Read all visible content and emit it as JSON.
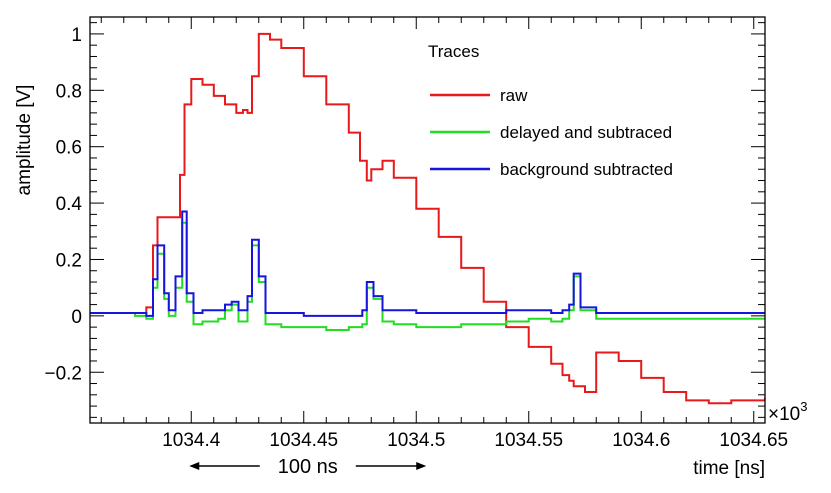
{
  "chart_data": {
    "type": "line",
    "title": "",
    "xlabel": "time [ns]",
    "ylabel": "amplitude [V]",
    "x_exponent_label": "×10",
    "x_exponent_power": "3",
    "xlim": [
      1034.355,
      1034.655
    ],
    "ylim": [
      -0.38,
      1.06
    ],
    "x_ticks": [
      1034.4,
      1034.45,
      1034.5,
      1034.55,
      1034.6,
      1034.65
    ],
    "x_tick_labels": [
      "1034.4",
      "1034.45",
      "1034.5",
      "1034.55",
      "1034.6",
      "1034.65"
    ],
    "y_ticks": [
      -0.2,
      0,
      0.2,
      0.4,
      0.6,
      0.8,
      1
    ],
    "y_tick_labels": [
      "−0.2",
      "0",
      "0.2",
      "0.4",
      "0.6",
      "0.8",
      "1"
    ],
    "grid": false,
    "legend_position": "top-right",
    "legend_title": "Traces",
    "annotation": {
      "text": "100 ns",
      "x_from": 1034.4,
      "x_to": 1034.5
    },
    "series": [
      {
        "name": "raw",
        "color": "#e8191b",
        "x": [
          1034.355,
          1034.36,
          1034.37,
          1034.38,
          1034.383,
          1034.385,
          1034.39,
          1034.393,
          1034.395,
          1034.397,
          1034.4,
          1034.405,
          1034.41,
          1034.415,
          1034.42,
          1034.423,
          1034.425,
          1034.427,
          1034.43,
          1034.435,
          1034.44,
          1034.45,
          1034.46,
          1034.47,
          1034.475,
          1034.478,
          1034.48,
          1034.485,
          1034.49,
          1034.5,
          1034.51,
          1034.52,
          1034.53,
          1034.54,
          1034.55,
          1034.56,
          1034.565,
          1034.568,
          1034.57,
          1034.575,
          1034.58,
          1034.59,
          1034.6,
          1034.61,
          1034.62,
          1034.63,
          1034.64,
          1034.655
        ],
        "y": [
          0.01,
          0.01,
          0.01,
          0.03,
          0.25,
          0.35,
          0.35,
          0.35,
          0.5,
          0.75,
          0.84,
          0.82,
          0.78,
          0.75,
          0.72,
          0.73,
          0.72,
          0.85,
          1.0,
          0.98,
          0.95,
          0.85,
          0.75,
          0.65,
          0.55,
          0.48,
          0.52,
          0.55,
          0.49,
          0.38,
          0.28,
          0.17,
          0.05,
          -0.04,
          -0.11,
          -0.17,
          -0.21,
          -0.23,
          -0.25,
          -0.27,
          -0.13,
          -0.16,
          -0.22,
          -0.27,
          -0.3,
          -0.31,
          -0.3,
          -0.29
        ]
      },
      {
        "name": "delayed and subtraced",
        "color": "#22dd22",
        "x": [
          1034.355,
          1034.375,
          1034.38,
          1034.383,
          1034.385,
          1034.388,
          1034.39,
          1034.393,
          1034.396,
          1034.398,
          1034.401,
          1034.405,
          1034.412,
          1034.415,
          1034.418,
          1034.421,
          1034.425,
          1034.427,
          1034.43,
          1034.433,
          1034.44,
          1034.45,
          1034.46,
          1034.47,
          1034.476,
          1034.478,
          1034.481,
          1034.485,
          1034.49,
          1034.5,
          1034.51,
          1034.52,
          1034.53,
          1034.54,
          1034.55,
          1034.56,
          1034.565,
          1034.568,
          1034.57,
          1034.573,
          1034.58,
          1034.6,
          1034.62,
          1034.64,
          1034.655
        ],
        "y": [
          0.01,
          0.0,
          -0.01,
          0.1,
          0.22,
          0.06,
          0.0,
          0.1,
          0.33,
          0.05,
          -0.03,
          -0.02,
          -0.01,
          0.02,
          0.04,
          -0.02,
          0.05,
          0.25,
          0.12,
          -0.03,
          -0.04,
          -0.04,
          -0.05,
          -0.04,
          -0.03,
          0.1,
          0.06,
          -0.02,
          -0.03,
          -0.04,
          -0.04,
          -0.03,
          -0.03,
          -0.02,
          -0.01,
          -0.02,
          -0.01,
          0.02,
          0.14,
          0.02,
          -0.01,
          -0.01,
          -0.01,
          -0.01,
          -0.01
        ]
      },
      {
        "name": "background subtracted",
        "color": "#1515dd",
        "x": [
          1034.355,
          1034.375,
          1034.38,
          1034.383,
          1034.385,
          1034.388,
          1034.39,
          1034.393,
          1034.396,
          1034.398,
          1034.401,
          1034.405,
          1034.412,
          1034.415,
          1034.418,
          1034.421,
          1034.425,
          1034.427,
          1034.43,
          1034.433,
          1034.44,
          1034.45,
          1034.46,
          1034.47,
          1034.476,
          1034.478,
          1034.481,
          1034.485,
          1034.49,
          1034.5,
          1034.51,
          1034.52,
          1034.53,
          1034.54,
          1034.55,
          1034.56,
          1034.565,
          1034.568,
          1034.57,
          1034.573,
          1034.58,
          1034.6,
          1034.62,
          1034.64,
          1034.655
        ],
        "y": [
          0.01,
          0.01,
          0.0,
          0.13,
          0.25,
          0.08,
          0.02,
          0.14,
          0.37,
          0.08,
          0.01,
          0.02,
          0.02,
          0.04,
          0.05,
          0.02,
          0.07,
          0.27,
          0.14,
          0.01,
          0.01,
          0.0,
          0.0,
          0.0,
          0.02,
          0.12,
          0.07,
          0.02,
          0.02,
          0.01,
          0.01,
          0.01,
          0.01,
          0.02,
          0.02,
          0.01,
          0.02,
          0.04,
          0.15,
          0.03,
          0.01,
          0.01,
          0.01,
          0.01,
          0.01
        ]
      }
    ]
  }
}
